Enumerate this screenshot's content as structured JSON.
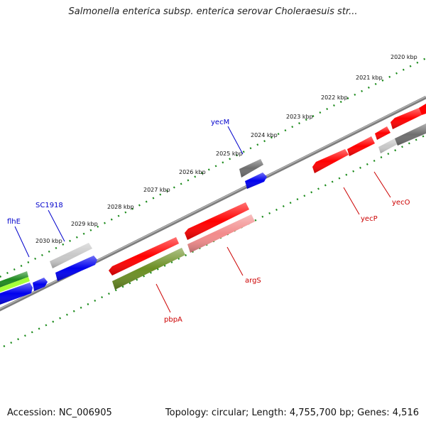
{
  "title": "Salmonella enterica subsp. enterica serovar Choleraesuis str...",
  "footer": {
    "accession": "Accession: NC_006905",
    "summary": "Topology: circular; Length: 4,755,700 bp; Genes: 4,516"
  },
  "colors": {
    "ruler_ticks": "#1a8a1a",
    "backbone": "#8a8a8a",
    "gene_red": "#ff0000",
    "gene_blue": "#0000ee",
    "gene_gray": "#777777",
    "gene_lightgray": "#c8c8c8",
    "gene_olive": "#6b8e23",
    "gene_pink": "#f28b8b",
    "gene_green": "#2ea02e",
    "label_blue": "#0000cc",
    "label_red": "#cc0000"
  },
  "ruler": {
    "unit": "kbp",
    "labels": [
      "2020 kbp",
      "2021 kbp",
      "2022 kbp",
      "2023 kbp",
      "2024 kbp",
      "2025 kbp",
      "2026 kbp",
      "2027 kbp",
      "2028 kbp",
      "2029 kbp",
      "2030 kbp"
    ]
  },
  "genes": [
    {
      "name": "flhE",
      "strand": "forward",
      "color": "gene_blue"
    },
    {
      "name": "SC1918",
      "strand": "forward",
      "color": "gene_lightgray"
    },
    {
      "name": "yecM",
      "strand": "forward",
      "color": "gene_gray"
    },
    {
      "name": "pbpA",
      "strand": "reverse",
      "color": "gene_red"
    },
    {
      "name": "argS",
      "strand": "reverse",
      "color": "gene_red"
    },
    {
      "name": "yecP",
      "strand": "reverse",
      "color": "gene_red"
    },
    {
      "name": "yecO",
      "strand": "reverse",
      "color": "gene_red"
    }
  ]
}
